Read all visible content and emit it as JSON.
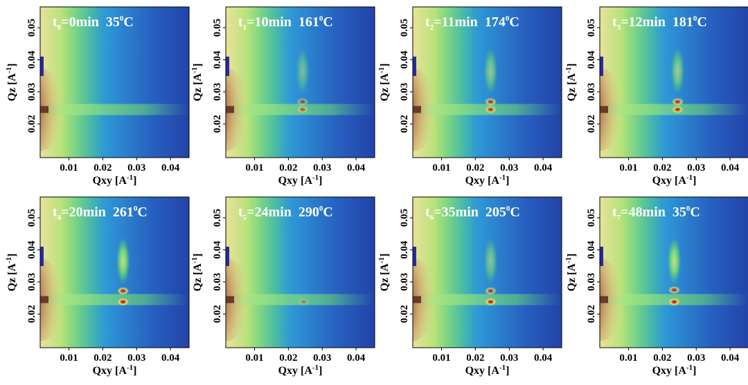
{
  "chart_data": [
    {
      "type": "heatmap",
      "time_sub": "0",
      "time": "=0min",
      "temp": "35",
      "temp_sup": "0",
      "temp_unit": "C",
      "xlabel": "Qxy [A",
      "xlabel_sup": "-1",
      "xlabel_end": "]",
      "ylabel": "Qz [A",
      "ylabel_sup": "-1",
      "ylabel_end": "]",
      "xlim": [
        0.0015,
        0.0455
      ],
      "ylim": [
        0.0095,
        0.0565
      ],
      "xticks": [
        "0.01",
        "0.02",
        "0.03",
        "0.04"
      ],
      "yticks": [
        "0.02",
        "0.03",
        "0.04",
        "0.05"
      ],
      "features": []
    },
    {
      "type": "heatmap",
      "time_sub": "1",
      "time": "=10min",
      "temp": "161",
      "temp_sup": "0",
      "temp_unit": "C",
      "xlabel": "Qxy [A",
      "xlabel_sup": "-1",
      "xlabel_end": "]",
      "ylabel": "Qz [A",
      "ylabel_sup": "-1",
      "ylabel_end": "]",
      "xlim": [
        0.0015,
        0.0455
      ],
      "ylim": [
        0.0095,
        0.0565
      ],
      "xticks": [
        "0.01",
        "0.02",
        "0.03",
        "0.04"
      ],
      "yticks": [
        "0.02",
        "0.03",
        "0.04",
        "0.05"
      ],
      "features": [
        {
          "kind": "rod",
          "qxy": 0.0242,
          "qz": 0.0365,
          "intensity": 0.45
        },
        {
          "kind": "spot",
          "qxy": 0.0242,
          "qz": 0.0269,
          "intensity": 0.55
        },
        {
          "kind": "spot",
          "qxy": 0.0242,
          "qz": 0.0245,
          "intensity": 0.6
        }
      ]
    },
    {
      "type": "heatmap",
      "time_sub": "2",
      "time": "=11min",
      "temp": "174",
      "temp_sup": "0",
      "temp_unit": "C",
      "xlabel": "Qxy [A",
      "xlabel_sup": "-1",
      "xlabel_end": "]",
      "ylabel": "Qz [A",
      "ylabel_sup": "-1",
      "ylabel_end": "]",
      "xlim": [
        0.0015,
        0.0455
      ],
      "ylim": [
        0.0095,
        0.0565
      ],
      "xticks": [
        "0.01",
        "0.02",
        "0.03",
        "0.04"
      ],
      "yticks": [
        "0.02",
        "0.03",
        "0.04",
        "0.05"
      ],
      "features": [
        {
          "kind": "rod",
          "qxy": 0.0245,
          "qz": 0.0365,
          "intensity": 0.6
        },
        {
          "kind": "spot",
          "qxy": 0.0245,
          "qz": 0.0269,
          "intensity": 0.8
        },
        {
          "kind": "spot",
          "qxy": 0.0245,
          "qz": 0.0245,
          "intensity": 0.85
        }
      ]
    },
    {
      "type": "heatmap",
      "time_sub": "3",
      "time": "=12min",
      "temp": "181",
      "temp_sup": "0",
      "temp_unit": "C",
      "xlabel": "Qxy [A",
      "xlabel_sup": "-1",
      "xlabel_end": "]",
      "ylabel": "Qz [A",
      "ylabel_sup": "-1",
      "ylabel_end": "]",
      "xlim": [
        0.0015,
        0.0455
      ],
      "ylim": [
        0.0095,
        0.0565
      ],
      "xticks": [
        "0.01",
        "0.02",
        "0.03",
        "0.04"
      ],
      "yticks": [
        "0.02",
        "0.03",
        "0.04",
        "0.05"
      ],
      "features": [
        {
          "kind": "rod",
          "qxy": 0.0245,
          "qz": 0.0365,
          "intensity": 0.65
        },
        {
          "kind": "spot",
          "qxy": 0.0245,
          "qz": 0.0269,
          "intensity": 0.85
        },
        {
          "kind": "spot",
          "qxy": 0.0245,
          "qz": 0.0245,
          "intensity": 0.9
        }
      ]
    },
    {
      "type": "heatmap",
      "time_sub": "4",
      "time": "=20min",
      "temp": "261",
      "temp_sup": "0",
      "temp_unit": "C",
      "xlabel": "Qxy [A",
      "xlabel_sup": "-1",
      "xlabel_end": "]",
      "ylabel": "Qz [A",
      "ylabel_sup": "-1",
      "ylabel_end": "]",
      "xlim": [
        0.0015,
        0.0455
      ],
      "ylim": [
        0.0095,
        0.0565
      ],
      "xticks": [
        "0.01",
        "0.02",
        "0.03",
        "0.04"
      ],
      "yticks": [
        "0.02",
        "0.03",
        "0.04",
        "0.05"
      ],
      "features": [
        {
          "kind": "rod",
          "qxy": 0.026,
          "qz": 0.0365,
          "intensity": 0.85
        },
        {
          "kind": "spot",
          "qxy": 0.026,
          "qz": 0.0272,
          "intensity": 0.9
        },
        {
          "kind": "spot",
          "qxy": 0.026,
          "qz": 0.0238,
          "intensity": 1.0
        }
      ]
    },
    {
      "type": "heatmap",
      "time_sub": "5",
      "time": "=24min",
      "temp": "290",
      "temp_sup": "0",
      "temp_unit": "C",
      "xlabel": "Qxy [A",
      "xlabel_sup": "-1",
      "xlabel_end": "]",
      "ylabel": "Qz [A",
      "ylabel_sup": "-1",
      "ylabel_end": "]",
      "xlim": [
        0.0015,
        0.0455
      ],
      "ylim": [
        0.0095,
        0.0565
      ],
      "xticks": [
        "0.01",
        "0.02",
        "0.03",
        "0.04"
      ],
      "yticks": [
        "0.02",
        "0.03",
        "0.04",
        "0.05"
      ],
      "features": [
        {
          "kind": "spot",
          "qxy": 0.0245,
          "qz": 0.0238,
          "intensity": 0.35
        }
      ]
    },
    {
      "type": "heatmap",
      "time_sub": "6",
      "time": "=35min",
      "temp": "205",
      "temp_sup": "0",
      "temp_unit": "C",
      "xlabel": "Qxy [A",
      "xlabel_sup": "-1",
      "xlabel_end": "]",
      "ylabel": "Qz [A",
      "ylabel_sup": "-1",
      "ylabel_end": "]",
      "xlim": [
        0.0015,
        0.0455
      ],
      "ylim": [
        0.0095,
        0.0565
      ],
      "xticks": [
        "0.01",
        "0.02",
        "0.03",
        "0.04"
      ],
      "yticks": [
        "0.02",
        "0.03",
        "0.04",
        "0.05"
      ],
      "features": [
        {
          "kind": "rod",
          "qxy": 0.0245,
          "qz": 0.0365,
          "intensity": 0.55
        },
        {
          "kind": "spot",
          "qxy": 0.0245,
          "qz": 0.0272,
          "intensity": 0.75
        },
        {
          "kind": "spot",
          "qxy": 0.0245,
          "qz": 0.0238,
          "intensity": 1.0
        }
      ]
    },
    {
      "type": "heatmap",
      "time_sub": "7",
      "time": "=48min",
      "temp": "35",
      "temp_sup": "0",
      "temp_unit": "C",
      "xlabel": "Qxy [A",
      "xlabel_sup": "-1",
      "xlabel_end": "]",
      "ylabel": "Qz [A",
      "ylabel_sup": "-1",
      "ylabel_end": "]",
      "xlim": [
        0.0015,
        0.0455
      ],
      "ylim": [
        0.0095,
        0.0565
      ],
      "xticks": [
        "0.01",
        "0.02",
        "0.03",
        "0.04"
      ],
      "yticks": [
        "0.02",
        "0.03",
        "0.04",
        "0.05"
      ],
      "features": [
        {
          "kind": "rod",
          "qxy": 0.0235,
          "qz": 0.0365,
          "intensity": 0.85
        },
        {
          "kind": "spot",
          "qxy": 0.0235,
          "qz": 0.0275,
          "intensity": 0.8
        },
        {
          "kind": "spot",
          "qxy": 0.0235,
          "qz": 0.0238,
          "intensity": 1.0
        }
      ]
    }
  ],
  "colors": {
    "background_low": "#1f3fa8",
    "background_mid": "#2a8fd8",
    "green": "#4cd86a",
    "yellow": "#f0e870",
    "hot": "#8a2a20",
    "beam_stop": "#6a3a28"
  }
}
